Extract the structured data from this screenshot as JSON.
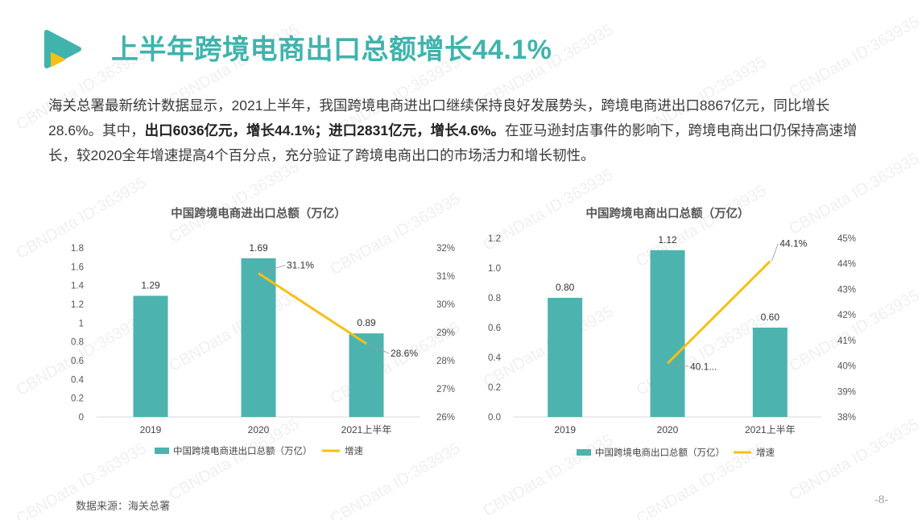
{
  "header": {
    "title": "上半年跨境电商出口总额增长44.1%"
  },
  "intro": {
    "p1": "海关总署最新统计数据显示，2021上半年，我国跨境电商进出口继续保持良好发展势头，跨境电商进出口8867亿元，同比增长28.6%。其中，",
    "b1": "出口6036亿元，增长44.1%；进口2831亿元，增长4.6%。",
    "p2": "在亚马逊封店事件的影响下，跨境电商出口仍保持高速增长，较2020全年增速提高4个百分点，充分验证了跨境电商出口的市场活力和增长韧性。"
  },
  "watermark": "CBNData ID:363935",
  "colors": {
    "bar": "#4db3ae",
    "line": "#f5c016",
    "title": "#40b3ad"
  },
  "chart_data": [
    {
      "type": "bar",
      "title": "中国跨境电商进出口总额（万亿）",
      "categories": [
        "2019",
        "2020",
        "2021上半年"
      ],
      "series": [
        {
          "name": "中国跨境电商进出口总额（万亿）",
          "kind": "bar",
          "axis": "left",
          "values": [
            1.29,
            1.69,
            0.89
          ],
          "labels": [
            "1.29",
            "1.69",
            "0.89"
          ]
        },
        {
          "name": "增速",
          "kind": "line",
          "axis": "right",
          "values": [
            null,
            31.1,
            28.6
          ],
          "labels": [
            "",
            "31.1%",
            "28.6%"
          ]
        }
      ],
      "ylim": [
        0,
        1.8
      ],
      "yticks": [
        "0",
        "0.2",
        "0.4",
        "0.6",
        "0.8",
        "1",
        "1.2",
        "1.4",
        "1.6",
        "1.8"
      ],
      "y2lim": [
        26,
        32
      ],
      "y2ticks": [
        "26%",
        "27%",
        "28%",
        "29%",
        "30%",
        "31%",
        "32%"
      ],
      "legend": "bottom",
      "grid": false
    },
    {
      "type": "bar",
      "title": "中国跨境电商出口总额（万亿）",
      "categories": [
        "2019",
        "2020",
        "2021上半年"
      ],
      "series": [
        {
          "name": "中国跨境电商出口总额（万亿）",
          "kind": "bar",
          "axis": "left",
          "values": [
            0.8,
            1.12,
            0.6
          ],
          "labels": [
            "0.80",
            "1.12",
            "0.60"
          ]
        },
        {
          "name": "增速",
          "kind": "line",
          "axis": "right",
          "values": [
            null,
            40.1,
            44.1
          ],
          "labels": [
            "",
            "40.1...",
            "44.1%"
          ]
        }
      ],
      "ylim": [
        0,
        1.2
      ],
      "yticks": [
        "0.0",
        "0.2",
        "0.4",
        "0.6",
        "0.8",
        "1.0",
        "1.2"
      ],
      "y2lim": [
        38,
        45
      ],
      "y2ticks": [
        "38%",
        "39%",
        "40%",
        "41%",
        "42%",
        "43%",
        "44%",
        "45%"
      ],
      "legend": "bottom",
      "grid": false
    }
  ],
  "footer": {
    "source": "数据来源：海关总署",
    "page": "-8-"
  }
}
